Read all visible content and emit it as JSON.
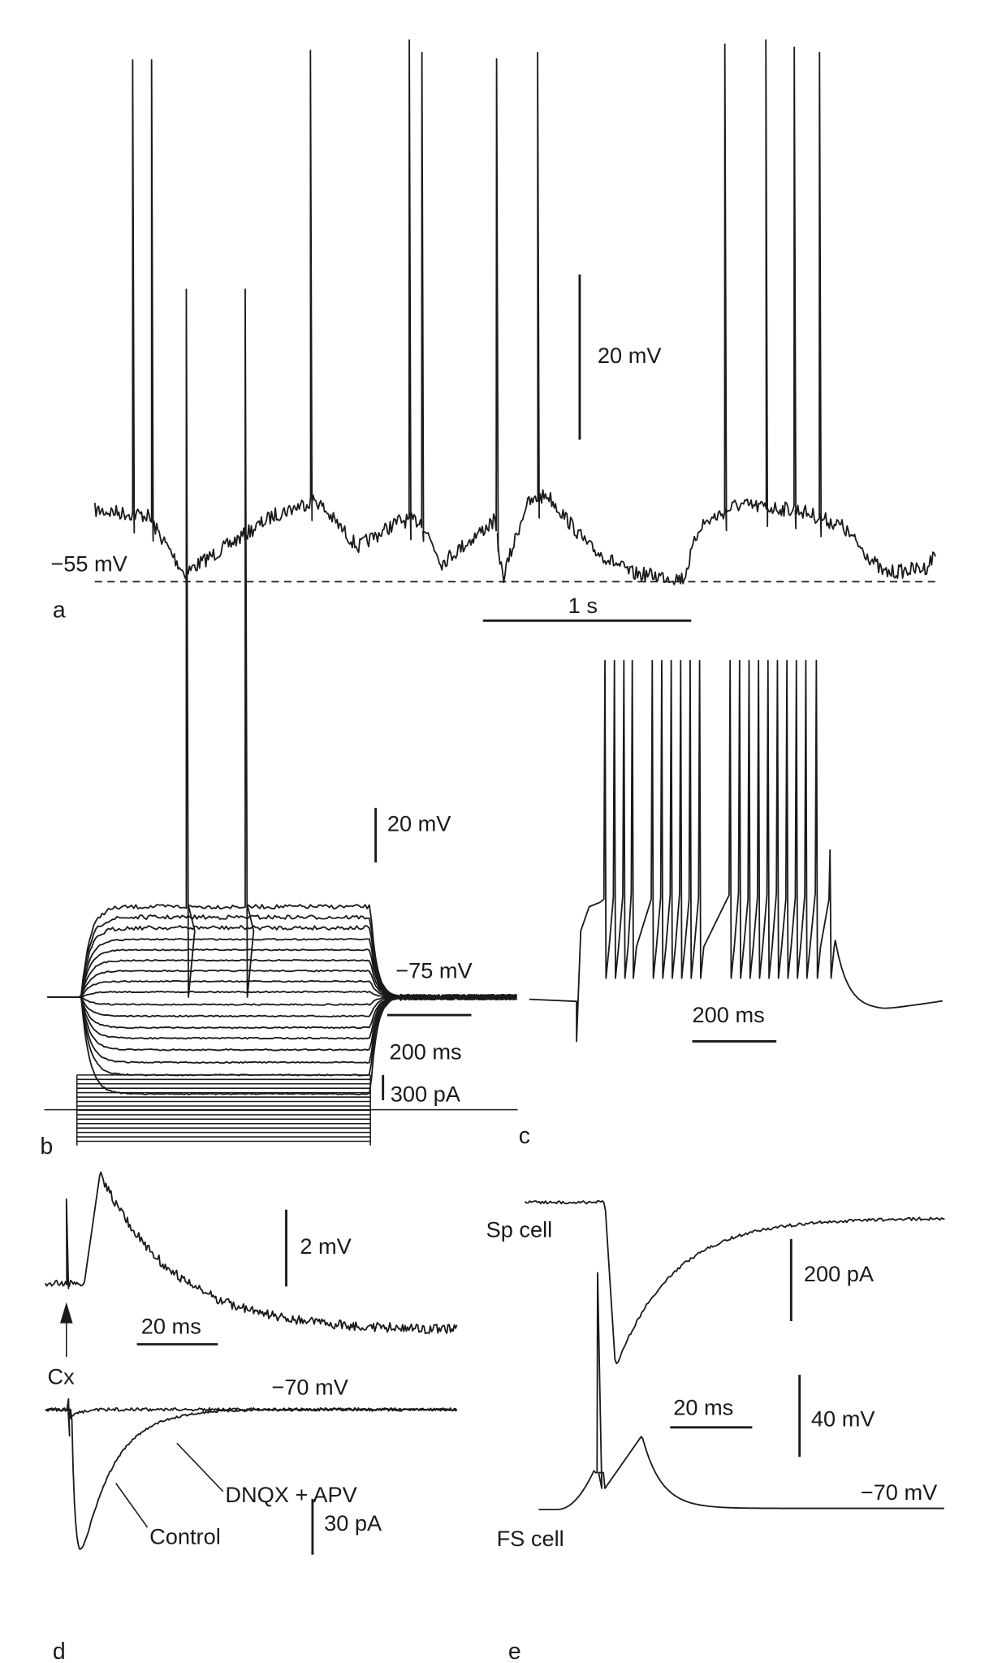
{
  "panels": {
    "a": {
      "label": "a",
      "baseline_label": "−55 mV",
      "voltage_scale": "20 mV",
      "time_scale": "1 s"
    },
    "b": {
      "label": "b",
      "voltage_scale": "20 mV",
      "holding_label": "−75 mV",
      "time_scale": "200 ms",
      "current_scale": "300 pA"
    },
    "c": {
      "label": "c",
      "time_scale": "200 ms"
    },
    "d": {
      "label": "d",
      "voltage_scale": "2 mV",
      "time_scale": "20 ms",
      "stimulus_label": "Cx",
      "holding_label": "−70 mV",
      "drug_trace_label": "DNQX + APV",
      "control_trace_label": "Control",
      "current_scale": "30 pA"
    },
    "e": {
      "label": "e",
      "sp_cell_label": "Sp cell",
      "current_scale": "200 pA",
      "time_scale": "20 ms",
      "voltage_scale": "40 mV",
      "holding_label": "−70 mV",
      "fs_cell_label": "FS cell"
    }
  },
  "colors": {
    "ink": "#1a1a1a",
    "background": "#ffffff"
  }
}
